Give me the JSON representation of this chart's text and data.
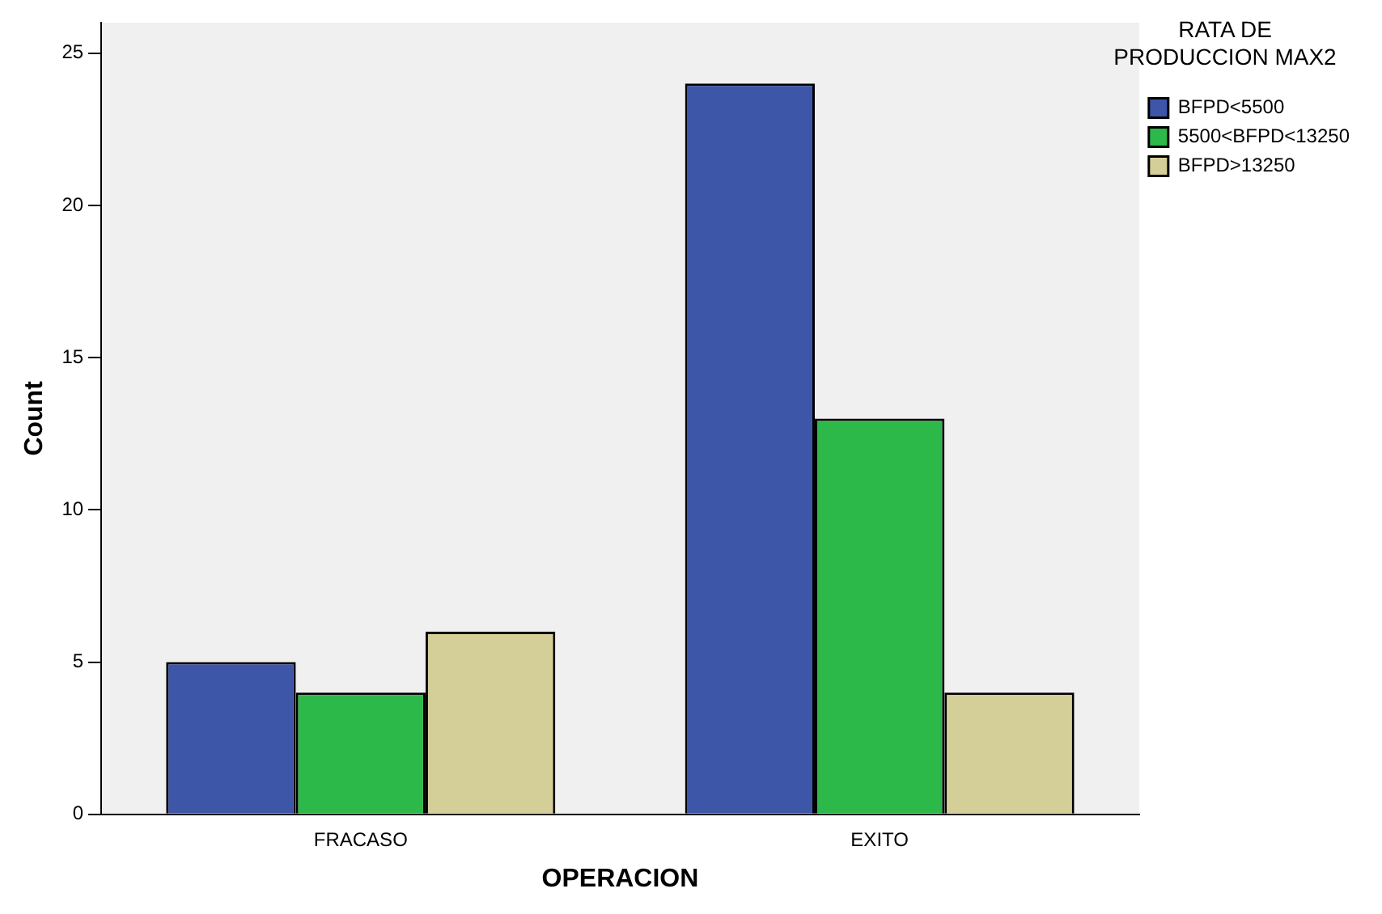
{
  "chart_data": {
    "type": "bar",
    "xlabel": "OPERACION",
    "ylabel": "Count",
    "legend_title": "RATA DE PRODUCCION MAX2",
    "legend": "right",
    "categories": [
      "FRACASO",
      "EXITO"
    ],
    "series": [
      {
        "name": "BFPD<5500",
        "color": "#3e56a8",
        "values": [
          5,
          24
        ]
      },
      {
        "name": "5500<BFPD<13250",
        "color": "#2db84a",
        "values": [
          4,
          13
        ]
      },
      {
        "name": "BFPD>13250",
        "color": "#d4cf98",
        "values": [
          6,
          4
        ]
      }
    ],
    "ylim": [
      0,
      26
    ],
    "yticks": [
      0,
      5,
      10,
      15,
      20,
      25
    ],
    "grid": false
  }
}
